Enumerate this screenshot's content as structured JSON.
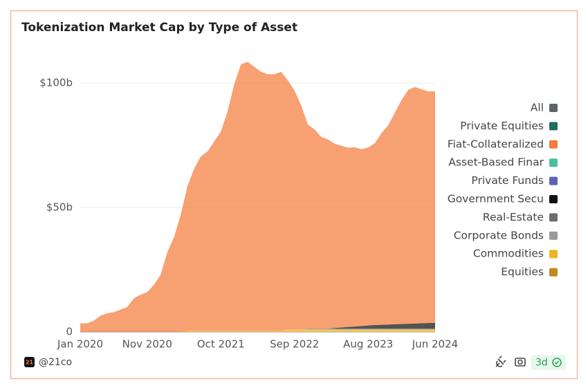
{
  "chart_data": {
    "type": "stacked-area",
    "title": "Tokenization Market Cap by Type of Asset",
    "legend_all": "All",
    "legend_all_color": "#5f6368",
    "categories": [
      "Jan 2020",
      null,
      null,
      null,
      null,
      null,
      null,
      null,
      null,
      null,
      "Nov 2020",
      null,
      null,
      null,
      null,
      null,
      null,
      null,
      null,
      null,
      null,
      "Oct 2021",
      null,
      null,
      null,
      null,
      null,
      null,
      null,
      null,
      null,
      null,
      "Sep 2022",
      null,
      null,
      null,
      null,
      null,
      null,
      null,
      null,
      null,
      null,
      "Aug 2023",
      null,
      null,
      null,
      null,
      null,
      null,
      null,
      null,
      null,
      "Jun 2024"
    ],
    "ylim": [
      0,
      115
    ],
    "yticks": [
      0,
      {
        "value": 50,
        "label": "$50b"
      },
      {
        "value": 100,
        "label": "$100b"
      }
    ],
    "grid": true,
    "legend": "right",
    "series": [
      {
        "name": "Private Equities",
        "color": "#1e6e5e",
        "values": [
          0,
          0,
          0,
          0,
          0,
          0,
          0,
          0,
          0,
          0,
          0,
          0,
          0,
          0,
          0,
          0,
          0,
          0,
          0,
          0,
          0,
          0,
          0,
          0,
          0,
          0,
          0,
          0,
          0,
          0,
          0,
          0,
          0,
          0,
          0,
          0,
          0,
          0,
          0,
          0,
          0,
          0,
          0,
          0,
          0,
          0,
          0,
          0,
          0,
          0,
          0,
          0,
          0,
          0
        ]
      },
      {
        "name": "Fiat-Collateralized",
        "color": "#f47c3c",
        "values": [
          3.5,
          3.5,
          4.5,
          6.5,
          7.5,
          8,
          9,
          10,
          13.5,
          15,
          16,
          19,
          23,
          32,
          38,
          47,
          58,
          65,
          70,
          72,
          76,
          80,
          88,
          99,
          107,
          108,
          106,
          104,
          103,
          103,
          104,
          100,
          96,
          90,
          82,
          80,
          77,
          76,
          74,
          73,
          72,
          72,
          71,
          71.5,
          73,
          77,
          80,
          85,
          90,
          94,
          95,
          94,
          93,
          93
        ]
      },
      {
        "name": "Asset-Based Finar",
        "color": "#4dbf9f",
        "values": [
          0,
          0,
          0,
          0,
          0,
          0,
          0,
          0,
          0,
          0,
          0,
          0,
          0,
          0,
          0,
          0,
          0,
          0,
          0,
          0,
          0,
          0,
          0,
          0,
          0,
          0,
          0,
          0,
          0,
          0,
          0,
          0,
          0,
          0,
          0,
          0,
          0,
          0,
          0,
          0,
          0,
          0,
          0,
          0,
          0,
          0,
          0,
          0,
          0,
          0,
          0,
          0,
          0,
          0
        ]
      },
      {
        "name": "Private Funds",
        "color": "#5b62b5",
        "values": [
          0,
          0,
          0,
          0,
          0,
          0,
          0,
          0,
          0,
          0,
          0,
          0,
          0,
          0,
          0,
          0,
          0,
          0,
          0,
          0,
          0,
          0,
          0,
          0,
          0,
          0,
          0,
          0,
          0,
          0,
          0,
          0,
          0,
          0,
          0,
          0,
          0,
          0,
          0,
          0,
          0,
          0,
          0,
          0,
          0,
          0,
          0,
          0,
          0,
          0,
          0,
          0,
          0,
          0
        ]
      },
      {
        "name": "Government Secu",
        "color": "#111111",
        "values": [
          0,
          0,
          0,
          0,
          0,
          0,
          0,
          0,
          0,
          0,
          0,
          0,
          0,
          0,
          0,
          0,
          0,
          0,
          0,
          0,
          0,
          0,
          0,
          0,
          0,
          0,
          0,
          0,
          0,
          0,
          0,
          0,
          0,
          0,
          0,
          0,
          0,
          0,
          0.3,
          0.5,
          0.7,
          0.9,
          1.1,
          1.3,
          1.5,
          1.6,
          1.7,
          1.8,
          1.9,
          2,
          2.1,
          2.2,
          2.3,
          2.4
        ]
      },
      {
        "name": "Real-Estate",
        "color": "#6e6e6e",
        "values": [
          0,
          0,
          0,
          0,
          0,
          0,
          0,
          0,
          0,
          0,
          0,
          0,
          0,
          0,
          0,
          0,
          0,
          0,
          0,
          0,
          0,
          0,
          0,
          0,
          0,
          0,
          0,
          0,
          0,
          0,
          0,
          0,
          0,
          0,
          0.3,
          0.3,
          0.3,
          0.3,
          0.3,
          0.3,
          0.3,
          0.3,
          0.3,
          0.3,
          0.3,
          0.3,
          0.3,
          0.3,
          0.3,
          0.3,
          0.3,
          0.3,
          0.3,
          0.3
        ]
      },
      {
        "name": "Corporate Bonds",
        "color": "#9a9a9a",
        "values": [
          0,
          0,
          0,
          0,
          0,
          0,
          0,
          0,
          0,
          0,
          0,
          0,
          0,
          0,
          0,
          0,
          0,
          0,
          0,
          0,
          0,
          0,
          0,
          0,
          0,
          0,
          0,
          0,
          0,
          0,
          0,
          0,
          0,
          0,
          0,
          0,
          0,
          0,
          0,
          0,
          0,
          0,
          0,
          0,
          0,
          0,
          0,
          0,
          0,
          0,
          0,
          0,
          0,
          0
        ]
      },
      {
        "name": "Commodities",
        "color": "#f0b323",
        "values": [
          0,
          0,
          0,
          0,
          0,
          0,
          0,
          0,
          0,
          0,
          0,
          0,
          0,
          0,
          0,
          0,
          0.5,
          0.5,
          0.5,
          0.5,
          0.5,
          0.5,
          0.5,
          0.5,
          0.5,
          0.5,
          0.5,
          0.5,
          0.5,
          0.5,
          0.5,
          1,
          1,
          1,
          1,
          1,
          1,
          1,
          1,
          1,
          1,
          1,
          1,
          1,
          1,
          1,
          1,
          1,
          1,
          1,
          1,
          1,
          1,
          1
        ]
      },
      {
        "name": "Equities",
        "color": "#c28a1e",
        "values": [
          0,
          0,
          0,
          0,
          0,
          0,
          0,
          0,
          0,
          0,
          0,
          0,
          0,
          0,
          0,
          0,
          0,
          0,
          0,
          0,
          0,
          0,
          0,
          0,
          0,
          0,
          0,
          0,
          0,
          0,
          0,
          0,
          0,
          0,
          0,
          0,
          0,
          0,
          0,
          0,
          0,
          0,
          0,
          0,
          0,
          0,
          0,
          0,
          0,
          0,
          0,
          0,
          0,
          0
        ]
      }
    ]
  },
  "footer": {
    "logo": "21",
    "handle": "@21co",
    "refresh": "3d"
  }
}
